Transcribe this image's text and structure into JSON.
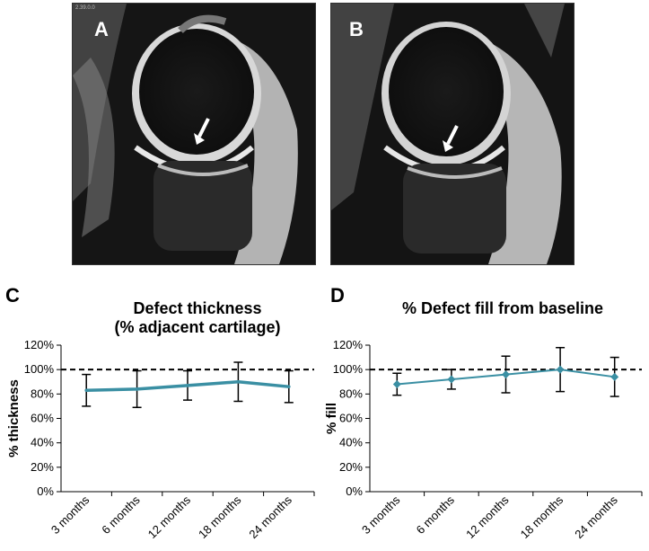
{
  "panels": {
    "A": {
      "letter": "A",
      "corner_text": "2.39.0.0"
    },
    "B": {
      "letter": "B"
    },
    "C": {
      "letter": "C"
    },
    "D": {
      "letter": "D"
    }
  },
  "colors": {
    "series": "#3a8fa3",
    "error_bars": "#000000",
    "reference": "#000000"
  },
  "chart_data": [
    {
      "type": "line",
      "title": "Defect thickness\n(% adjacent cartilage)",
      "title_lines": [
        "Defect thickness",
        "(% adjacent cartilage)"
      ],
      "ylabel": "% thickness",
      "categories": [
        "3 months",
        "6 months",
        "12 months",
        "18 months",
        "24 months"
      ],
      "series": [
        {
          "values": [
            83,
            84,
            87,
            90,
            86
          ],
          "error": [
            13,
            15,
            12,
            16,
            13
          ],
          "marker": "none"
        }
      ],
      "ylim": [
        0,
        120
      ],
      "yticks": [
        "0%",
        "20%",
        "40%",
        "60%",
        "80%",
        "100%",
        "120%"
      ],
      "reference_line": 100,
      "grid": false
    },
    {
      "type": "line",
      "title": "% Defect fill from baseline",
      "title_lines": [
        "% Defect fill from baseline"
      ],
      "ylabel": "% fill",
      "categories": [
        "3 months",
        "6 months",
        "12 months",
        "18 months",
        "24 months"
      ],
      "series": [
        {
          "values": [
            88,
            92,
            96,
            100,
            94
          ],
          "error": [
            9,
            8,
            15,
            18,
            16
          ],
          "marker": "diamond"
        }
      ],
      "ylim": [
        0,
        120
      ],
      "yticks": [
        "0%",
        "20%",
        "40%",
        "60%",
        "80%",
        "100%",
        "120%"
      ],
      "reference_line": 100,
      "grid": false
    }
  ]
}
